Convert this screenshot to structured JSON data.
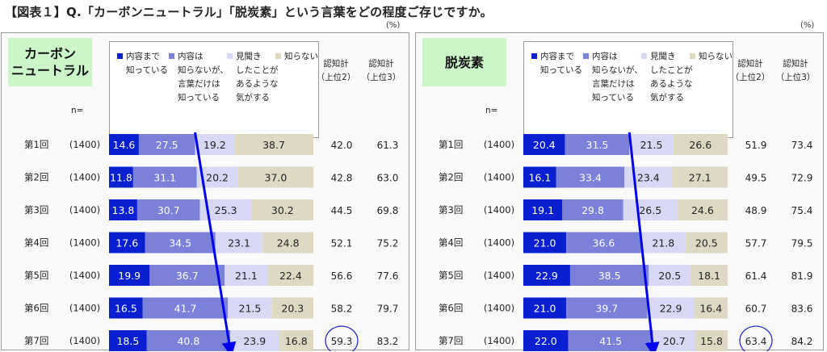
{
  "page_title": "【図表１】Q.「カーボンニュートラル」「脱炭素」という言葉をどの程度ご存じですか。",
  "unit_label": "(%)",
  "legend": [
    {
      "label": "内容まで\n知っている",
      "color": "#0a1fcf"
    },
    {
      "label": "内容は\n知らないが、\n言葉だけは\n知っている",
      "color": "#7b80d9"
    },
    {
      "label": "見聞き\nしたことが\nあるような\n気がする",
      "color": "#d6d8f4"
    },
    {
      "label": "知らない",
      "color": "#ddd9c3"
    }
  ],
  "columns": {
    "n": "n=",
    "top2": "認知計\n（上位2）",
    "top3": "認知計\n（上位3）"
  },
  "chart_data": [
    {
      "type": "bar",
      "stacked": true,
      "orientation": "horizontal",
      "title": "カーボン\nニュートラル",
      "categories": [
        "第1回",
        "第2回",
        "第3回",
        "第4回",
        "第5回",
        "第6回",
        "第7回"
      ],
      "n": [
        "(1400)",
        "(1400)",
        "(1400)",
        "(1400)",
        "(1400)",
        "(1400)",
        "(1400)"
      ],
      "series": [
        {
          "name": "内容まで知っている",
          "values": [
            14.6,
            11.8,
            13.8,
            17.6,
            19.9,
            16.5,
            18.5
          ]
        },
        {
          "name": "内容は知らないが、言葉だけは知っている",
          "values": [
            27.5,
            31.1,
            30.7,
            34.5,
            36.7,
            41.7,
            40.8
          ]
        },
        {
          "name": "見聞きしたことがあるような気がする",
          "values": [
            19.2,
            20.2,
            25.3,
            23.1,
            21.1,
            21.5,
            23.9
          ]
        },
        {
          "name": "知らない",
          "values": [
            38.7,
            37.0,
            30.2,
            24.8,
            22.4,
            20.3,
            16.8
          ]
        }
      ],
      "top2": [
        42.0,
        42.8,
        44.5,
        52.1,
        56.6,
        58.2,
        59.3
      ],
      "top3": [
        61.3,
        63.0,
        69.8,
        75.2,
        77.6,
        79.7,
        83.2
      ],
      "highlight_row": 6,
      "xlim": [
        0,
        100
      ]
    },
    {
      "type": "bar",
      "stacked": true,
      "orientation": "horizontal",
      "title": "脱炭素",
      "categories": [
        "第1回",
        "第2回",
        "第3回",
        "第4回",
        "第5回",
        "第6回",
        "第7回"
      ],
      "n": [
        "(1400)",
        "(1400)",
        "(1400)",
        "(1400)",
        "(1400)",
        "(1400)",
        "(1400)"
      ],
      "series": [
        {
          "name": "内容まで知っている",
          "values": [
            20.4,
            16.1,
            19.1,
            21.0,
            22.9,
            21.0,
            22.0
          ]
        },
        {
          "name": "内容は知らないが、言葉だけは知っている",
          "values": [
            31.5,
            33.4,
            29.8,
            36.6,
            38.5,
            39.7,
            41.5
          ]
        },
        {
          "name": "見聞きしたことがあるような気がする",
          "values": [
            21.5,
            23.4,
            26.5,
            21.8,
            20.5,
            22.9,
            20.7
          ]
        },
        {
          "name": "知らない",
          "values": [
            26.6,
            27.1,
            24.6,
            20.5,
            18.1,
            16.4,
            15.8
          ]
        }
      ],
      "top2": [
        51.9,
        49.5,
        48.9,
        57.7,
        61.4,
        60.7,
        63.4
      ],
      "top3": [
        73.4,
        72.9,
        75.4,
        79.5,
        81.9,
        83.6,
        84.2
      ],
      "highlight_row": 6,
      "xlim": [
        0,
        100
      ]
    }
  ]
}
